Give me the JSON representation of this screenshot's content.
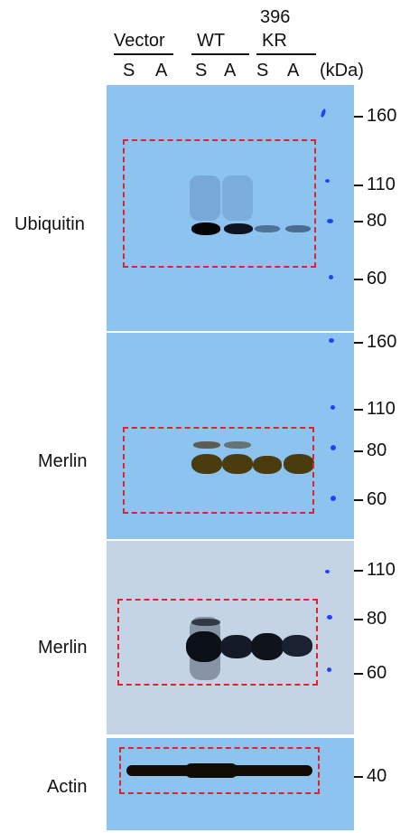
{
  "headers": {
    "vector": "Vector",
    "wt": "WT",
    "mutant_line1": "396",
    "mutant_line2": "KR",
    "kda": "(kDa)",
    "lanes": [
      "S",
      "A",
      "S",
      "A",
      "S",
      "A"
    ]
  },
  "panels": [
    {
      "label": "Ubiquitin",
      "markers": [
        "160",
        "110",
        "80",
        "60"
      ]
    },
    {
      "label": "Merlin",
      "markers": [
        "160",
        "110",
        "80",
        "60"
      ]
    },
    {
      "label": "Merlin",
      "markers": [
        "110",
        "80",
        "60"
      ]
    },
    {
      "label": "Actin",
      "markers": [
        "40"
      ]
    }
  ],
  "colors": {
    "membrane_blue": "#8dc3ef",
    "membrane_grey": "#c4d4e4",
    "dashed_box": "#e0222b",
    "ladder_marker": "#1c44ff"
  }
}
